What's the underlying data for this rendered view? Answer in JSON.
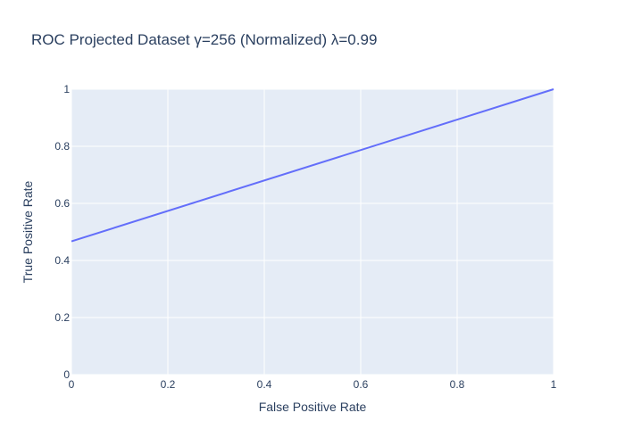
{
  "chart_data": {
    "type": "line",
    "title": "ROC Projected Dataset γ=256 (Normalized) λ=0.99",
    "xlabel": "False Positive Rate",
    "ylabel": "True Positive Rate",
    "xlim": [
      0,
      1
    ],
    "ylim": [
      0,
      1
    ],
    "xticks": [
      "0",
      "0.2",
      "0.4",
      "0.6",
      "0.8",
      "1"
    ],
    "yticks": [
      "0",
      "0.2",
      "0.4",
      "0.6",
      "0.8",
      "1"
    ],
    "grid": true,
    "legend": "none",
    "series": [
      {
        "x": [
          0,
          1
        ],
        "y": [
          0.467,
          1.0
        ],
        "color": "#636efa"
      }
    ],
    "colors": {
      "plot_background": "#e5ecf6",
      "grid": "#ffffff",
      "text": "#2a3f5f"
    }
  }
}
